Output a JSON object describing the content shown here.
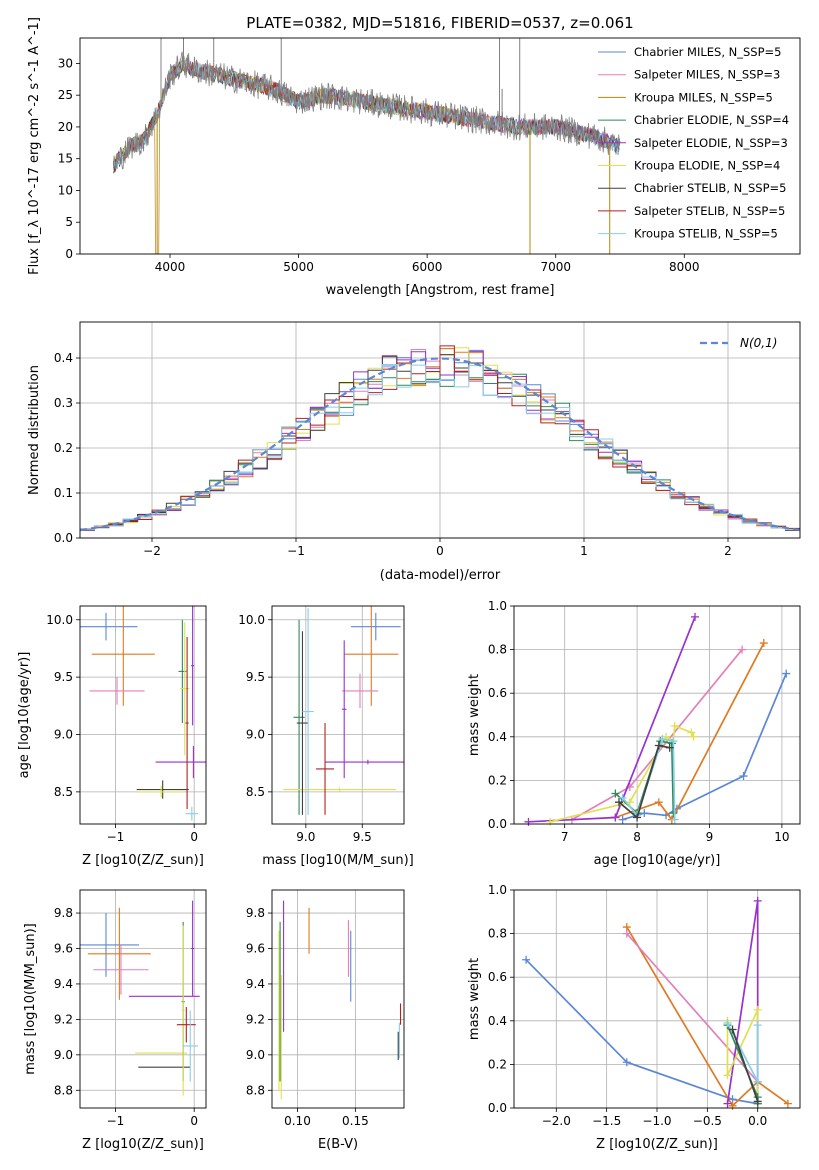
{
  "title": "PLATE=0382, MJD=51816, FIBERID=0537, z=0.061",
  "colors": {
    "chab_miles": "#5b87d6",
    "salp_miles": "#e37fba",
    "krou_miles": "#b8860b",
    "chab_elodie": "#2e8b57",
    "salp_elodie": "#9932cc",
    "krou_elodie": "#e0e050",
    "chab_stelib": "#404040",
    "salp_stelib": "#b22222",
    "krou_stelib": "#87ceeb",
    "observed": "#808080",
    "normal": "#5b87d6",
    "orange": "#e07a20",
    "grid": "#b0b0b0"
  },
  "chart_data": [
    {
      "type": "line",
      "panel": "spectrum",
      "xlabel": "wavelength [Angstrom, rest frame]",
      "ylabel": "Flux [f_λ 10^-17 erg cm^-2 s^-1 A^-1]",
      "xlim": [
        3300,
        8900
      ],
      "ylim": [
        0,
        34
      ],
      "xticks": [
        4000,
        5000,
        6000,
        7000,
        8000
      ],
      "yticks": [
        0,
        5,
        10,
        15,
        20,
        25,
        30
      ],
      "grid": false,
      "legend_position": "top-right",
      "legend": [
        {
          "label": "Chabrier MILES, N_SSP=5",
          "color_key": "chab_miles"
        },
        {
          "label": "Salpeter MILES, N_SSP=3",
          "color_key": "salp_miles"
        },
        {
          "label": "Kroupa MILES, N_SSP=5",
          "color_key": "krou_miles"
        },
        {
          "label": "Chabrier ELODIE, N_SSP=4",
          "color_key": "chab_elodie"
        },
        {
          "label": "Salpeter ELODIE, N_SSP=3",
          "color_key": "salp_elodie"
        },
        {
          "label": "Kroupa ELODIE, N_SSP=4",
          "color_key": "krou_elodie"
        },
        {
          "label": "Chabrier STELIB, N_SSP=5",
          "color_key": "chab_stelib"
        },
        {
          "label": "Salpeter STELIB, N_SSP=5",
          "color_key": "salp_stelib"
        },
        {
          "label": "Kroupa STELIB, N_SSP=5",
          "color_key": "krou_stelib"
        }
      ],
      "continuum": [
        [
          3560,
          14
        ],
        [
          3700,
          17
        ],
        [
          3800,
          18
        ],
        [
          3900,
          22
        ],
        [
          4000,
          28
        ],
        [
          4100,
          30
        ],
        [
          4200,
          29
        ],
        [
          4400,
          28
        ],
        [
          4600,
          27
        ],
        [
          4800,
          26
        ],
        [
          5000,
          24
        ],
        [
          5200,
          25
        ],
        [
          5500,
          24
        ],
        [
          5800,
          23
        ],
        [
          6100,
          22
        ],
        [
          6400,
          21
        ],
        [
          6700,
          20
        ],
        [
          7000,
          20
        ],
        [
          7300,
          18.5
        ],
        [
          7500,
          17
        ]
      ],
      "drops": [
        [
          3900,
          0
        ],
        [
          6800,
          0
        ],
        [
          7420,
          0
        ]
      ],
      "spikes": [
        [
          3930,
          34
        ],
        [
          4105,
          34
        ],
        [
          4340,
          34
        ],
        [
          4865,
          34
        ],
        [
          6563,
          34
        ],
        [
          6583,
          26
        ],
        [
          6720,
          34
        ]
      ]
    },
    {
      "type": "line",
      "panel": "residuals",
      "xlabel": "(data-model)/error",
      "ylabel": "Normed distribution",
      "xlim": [
        -2.5,
        2.5
      ],
      "ylim": [
        0,
        0.48
      ],
      "xticks": [
        -2,
        -1,
        0,
        1,
        2
      ],
      "yticks": [
        0.0,
        0.1,
        0.2,
        0.3,
        0.4
      ],
      "grid": true,
      "legend_position": "top-right",
      "normal_label": "N(0,1)",
      "normal_mu": 0,
      "normal_sigma": 1
    },
    {
      "type": "scatter",
      "panel": "age-vs-Z",
      "xlabel": "Z [log10(Z/Z_sun)]",
      "ylabel": "age [log10(age/yr)]",
      "xlim": [
        -1.45,
        0.15
      ],
      "ylim": [
        8.22,
        10.12
      ],
      "xticks": [
        -1,
        0
      ],
      "yticks": [
        8.5,
        9.0,
        9.5,
        10.0
      ],
      "grid": true,
      "points": [
        {
          "color_key": "chab_miles",
          "x": -1.12,
          "xerr": 0.4,
          "y": 9.94,
          "yerr": 0.12
        },
        {
          "color_key": "orange",
          "x": -0.9,
          "xerr": 0.4,
          "y": 9.7,
          "yerr": 0.45
        },
        {
          "color_key": "salp_miles",
          "x": -0.98,
          "xerr": 0.35,
          "y": 9.38,
          "yerr": 0.12
        },
        {
          "color_key": "chab_elodie",
          "x": -0.15,
          "xerr": 0.05,
          "y": 9.55,
          "yerr": 0.45
        },
        {
          "color_key": "salp_elodie",
          "x": -0.01,
          "xerr": 0.48,
          "y": 8.76,
          "yerr": 0.14
        },
        {
          "color_key": "krou_elodie",
          "x": -0.12,
          "xerr": 0.06,
          "y": 9.4,
          "yerr": 0.58
        },
        {
          "color_key": "chab_stelib",
          "x": -0.4,
          "xerr": 0.33,
          "y": 8.52,
          "yerr": 0.08
        },
        {
          "color_key": "krou_elodie",
          "x": -0.42,
          "xerr": 0.3,
          "y": 8.5,
          "yerr": 0.05
        },
        {
          "color_key": "salp_stelib",
          "x": -0.09,
          "xerr": 0.02,
          "y": 9.1,
          "yerr": 0.75
        },
        {
          "color_key": "krou_stelib",
          "x": -0.03,
          "xerr": 0.08,
          "y": 8.31,
          "yerr": 0.06
        },
        {
          "color_key": "salp_elodie",
          "x": -0.02,
          "xerr": 0.02,
          "y": 9.6,
          "yerr": 0.52
        }
      ]
    },
    {
      "type": "scatter",
      "panel": "age-vs-mass",
      "xlabel": "mass [log10(M/M_sun)]",
      "ylabel": "",
      "xlim": [
        8.7,
        9.87
      ],
      "ylim": [
        8.22,
        10.12
      ],
      "xticks": [
        9.0,
        9.5
      ],
      "yticks": [
        8.5,
        9.0,
        9.5,
        10.0
      ],
      "grid": true,
      "points": [
        {
          "color_key": "chab_miles",
          "x": 9.62,
          "xerr": 0.22,
          "y": 9.94,
          "yerr": 0.12
        },
        {
          "color_key": "orange",
          "x": 9.58,
          "xerr": 0.24,
          "y": 9.7,
          "yerr": 0.45
        },
        {
          "color_key": "salp_miles",
          "x": 9.48,
          "xerr": 0.16,
          "y": 9.38,
          "yerr": 0.15
        },
        {
          "color_key": "chab_elodie",
          "x": 8.94,
          "xerr": 0.05,
          "y": 9.15,
          "yerr": 0.85
        },
        {
          "color_key": "salp_elodie",
          "x": 9.34,
          "xerr": 0.02,
          "y": 9.22,
          "yerr": 0.6
        },
        {
          "color_key": "salp_elodie",
          "x": 9.55,
          "xerr": 0.38,
          "y": 8.76,
          "yerr": 0.02
        },
        {
          "color_key": "krou_elodie",
          "x": 9.3,
          "xerr": 0.5,
          "y": 8.52,
          "yerr": 0.02
        },
        {
          "color_key": "chab_stelib",
          "x": 8.97,
          "xerr": 0.05,
          "y": 9.1,
          "yerr": 0.8
        },
        {
          "color_key": "salp_stelib",
          "x": 9.17,
          "xerr": 0.08,
          "y": 8.7,
          "yerr": 0.4
        },
        {
          "color_key": "krou_stelib",
          "x": 9.02,
          "xerr": 0.05,
          "y": 9.2,
          "yerr": 0.9
        }
      ]
    },
    {
      "type": "line",
      "panel": "mass-weight-vs-age",
      "xlabel": "age [log10(age/yr)]",
      "ylabel": "mass weight",
      "xlim": [
        6.3,
        10.25
      ],
      "ylim": [
        0,
        1
      ],
      "xticks": [
        7,
        8,
        9,
        10
      ],
      "yticks": [
        0.0,
        0.2,
        0.4,
        0.6,
        0.8,
        1.0
      ],
      "grid": true,
      "series": [
        {
          "color_key": "chab_miles",
          "x": [
            7.8,
            8.1,
            8.4,
            8.55,
            9.47,
            10.06
          ],
          "y": [
            0.02,
            0.05,
            0.04,
            0.07,
            0.22,
            0.69
          ]
        },
        {
          "color_key": "orange",
          "x": [
            7.7,
            8.3,
            8.48,
            9.75
          ],
          "y": [
            0.03,
            0.1,
            0.02,
            0.83
          ]
        },
        {
          "color_key": "salp_miles",
          "x": [
            7.1,
            7.9,
            9.45
          ],
          "y": [
            0.02,
            0.17,
            0.8
          ]
        },
        {
          "color_key": "salp_elodie",
          "x": [
            6.5,
            7.7,
            8.8
          ],
          "y": [
            0.01,
            0.03,
            0.95
          ]
        },
        {
          "color_key": "krou_elodie",
          "x": [
            6.8,
            7.9,
            8.4,
            8.5,
            8.52,
            8.75,
            8.78
          ],
          "y": [
            0.01,
            0.1,
            0.4,
            0.38,
            0.45,
            0.42,
            0.4
          ]
        },
        {
          "color_key": "chab_elodie",
          "x": [
            7.7,
            8.0,
            8.32,
            8.48,
            8.5
          ],
          "y": [
            0.14,
            0.05,
            0.38,
            0.37,
            0.05
          ]
        },
        {
          "color_key": "krou_stelib",
          "x": [
            7.8,
            8.0,
            8.35,
            8.5,
            8.52
          ],
          "y": [
            0.12,
            0.04,
            0.39,
            0.38,
            0.02
          ]
        },
        {
          "color_key": "chab_stelib",
          "x": [
            7.75,
            8.0,
            8.3,
            8.45
          ],
          "y": [
            0.1,
            0.03,
            0.36,
            0.35
          ]
        }
      ]
    },
    {
      "type": "scatter",
      "panel": "mass-vs-Z",
      "xlabel": "Z [log10(Z/Z_sun)]",
      "ylabel": "mass [log10(M/M_sun)]",
      "xlim": [
        -1.45,
        0.15
      ],
      "ylim": [
        8.7,
        9.93
      ],
      "xticks": [
        -1,
        0
      ],
      "yticks": [
        8.8,
        9.0,
        9.2,
        9.4,
        9.6,
        9.8
      ],
      "grid": true,
      "points": [
        {
          "color_key": "chab_miles",
          "x": -1.12,
          "xerr": 0.42,
          "y": 9.62,
          "yerr": 0.18
        },
        {
          "color_key": "orange",
          "x": -0.95,
          "xerr": 0.4,
          "y": 9.57,
          "yerr": 0.26
        },
        {
          "color_key": "salp_miles",
          "x": -0.93,
          "xerr": 0.35,
          "y": 9.48,
          "yerr": 0.14
        },
        {
          "color_key": "salp_elodie",
          "x": -0.38,
          "xerr": 0.45,
          "y": 9.33,
          "yerr": 0.0
        },
        {
          "color_key": "krou_elodie",
          "x": -0.42,
          "xerr": 0.33,
          "y": 9.01,
          "yerr": 0.0
        },
        {
          "color_key": "chab_stelib",
          "x": -0.38,
          "xerr": 0.33,
          "y": 8.93,
          "yerr": 0.0
        },
        {
          "color_key": "chab_elodie",
          "x": -0.14,
          "xerr": 0.02,
          "y": 9.3,
          "yerr": 0.45
        },
        {
          "color_key": "krou_elodie",
          "x": -0.14,
          "xerr": 0.02,
          "y": 9.25,
          "yerr": 0.48
        },
        {
          "color_key": "salp_stelib",
          "x": -0.1,
          "xerr": 0.12,
          "y": 9.17,
          "yerr": 0.1
        },
        {
          "color_key": "krou_stelib",
          "x": -0.05,
          "xerr": 0.1,
          "y": 9.05,
          "yerr": 0.2
        },
        {
          "color_key": "salp_elodie",
          "x": -0.02,
          "xerr": 0.02,
          "y": 9.6,
          "yerr": 0.27
        }
      ]
    },
    {
      "type": "scatter",
      "panel": "mass-vs-EBV",
      "xlabel": "E(B-V)",
      "ylabel": "",
      "xlim": [
        0.078,
        0.192
      ],
      "ylim": [
        8.7,
        9.93
      ],
      "xticks": [
        0.1,
        0.15
      ],
      "yticks": [
        8.8,
        9.0,
        9.2,
        9.4,
        9.6,
        9.8
      ],
      "grid": true,
      "points": [
        {
          "color_key": "krou_elodie",
          "x": 0.084,
          "xerr": 0,
          "y": 9.25,
          "yerr": 0.45
        },
        {
          "color_key": "chab_elodie",
          "x": 0.085,
          "xerr": 0,
          "y": 9.3,
          "yerr": 0.45
        },
        {
          "color_key": "krou_elodie",
          "x": 0.086,
          "xerr": 0,
          "y": 9.1,
          "yerr": 0.35
        },
        {
          "color_key": "salp_elodie",
          "x": 0.088,
          "xerr": 0,
          "y": 9.5,
          "yerr": 0.37
        },
        {
          "color_key": "orange",
          "x": 0.11,
          "xerr": 0,
          "y": 9.7,
          "yerr": 0.13
        },
        {
          "color_key": "salp_miles",
          "x": 0.144,
          "xerr": 0,
          "y": 9.6,
          "yerr": 0.16
        },
        {
          "color_key": "chab_miles",
          "x": 0.146,
          "xerr": 0,
          "y": 9.5,
          "yerr": 0.2
        },
        {
          "color_key": "salp_stelib",
          "x": 0.189,
          "xerr": 0,
          "y": 9.23,
          "yerr": 0.06
        },
        {
          "color_key": "krou_stelib",
          "x": 0.188,
          "xerr": 0,
          "y": 9.08,
          "yerr": 0.1
        },
        {
          "color_key": "chab_stelib",
          "x": 0.187,
          "xerr": 0,
          "y": 9.05,
          "yerr": 0.08
        }
      ]
    },
    {
      "type": "line",
      "panel": "mass-weight-vs-Z",
      "xlabel": "Z [log10(Z/Z_sun)]",
      "ylabel": "mass weight",
      "xlim": [
        -2.42,
        0.42
      ],
      "ylim": [
        0,
        1
      ],
      "xticks": [
        -2.0,
        -1.5,
        -1.0,
        -0.5,
        0.0
      ],
      "yticks": [
        0.0,
        0.2,
        0.4,
        0.6,
        0.8,
        1.0
      ],
      "grid": true,
      "series": [
        {
          "color_key": "chab_miles",
          "x": [
            -2.3,
            -1.3,
            -0.25,
            0.0
          ],
          "y": [
            0.68,
            0.21,
            0.04,
            0.02
          ]
        },
        {
          "color_key": "orange",
          "x": [
            -1.3,
            -0.25,
            0.0,
            0.3
          ],
          "y": [
            0.83,
            0.01,
            0.12,
            0.02
          ]
        },
        {
          "color_key": "salp_miles",
          "x": [
            -1.3,
            0.0,
            0.0
          ],
          "y": [
            0.8,
            0.12,
            0.02
          ]
        },
        {
          "color_key": "salp_elodie",
          "x": [
            -0.3,
            0.0,
            0.0
          ],
          "y": [
            0.02,
            0.95,
            0.02
          ]
        },
        {
          "color_key": "krou_elodie",
          "x": [
            -0.3,
            -0.3,
            0.0,
            0.0
          ],
          "y": [
            0.4,
            0.15,
            0.45,
            0.02
          ]
        },
        {
          "color_key": "chab_elodie",
          "x": [
            -0.3,
            0.0,
            0.0
          ],
          "y": [
            0.38,
            0.05,
            0.02
          ]
        },
        {
          "color_key": "krou_stelib",
          "x": [
            -0.3,
            0.0,
            0.0
          ],
          "y": [
            0.39,
            0.12,
            0.38
          ]
        },
        {
          "color_key": "chab_stelib",
          "x": [
            -0.25,
            0.0
          ],
          "y": [
            0.36,
            0.03
          ]
        }
      ]
    }
  ]
}
